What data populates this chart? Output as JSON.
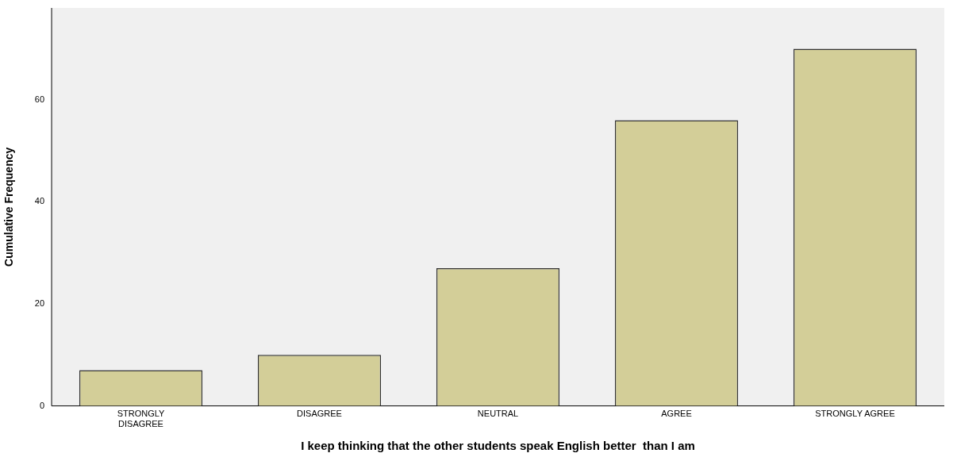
{
  "chart_data": {
    "type": "bar",
    "xlabel": "I keep thinking that the other students speak English better  than I am",
    "ylabel": "Cumulative Frequency",
    "categories": [
      "STRONGLY DISAGREE",
      "DISAGREE",
      "NEUTRAL",
      "AGREE",
      "STRONGLY AGREE"
    ],
    "values": [
      7,
      10,
      27,
      56,
      70
    ],
    "color": "#d3ce98",
    "ylim": [
      0,
      78
    ],
    "yticks": [
      0,
      20,
      40,
      60
    ],
    "grid": false,
    "legend": false
  }
}
